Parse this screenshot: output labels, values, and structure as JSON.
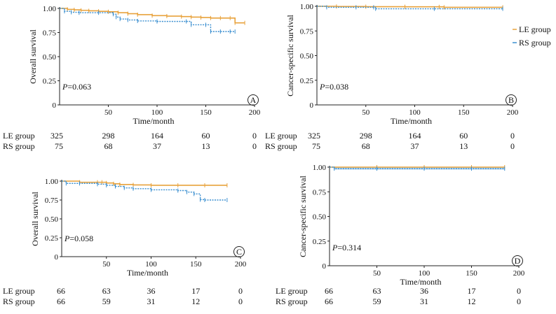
{
  "legend": {
    "items": [
      {
        "label": "LE group",
        "color": "#E8A23C",
        "marker": "-"
      },
      {
        "label": "RS group",
        "color": "#3B8FD0",
        "marker": "-"
      }
    ]
  },
  "chart_data": [
    {
      "type": "line",
      "panel_label": "A",
      "xlabel": "Time/month",
      "ylabel": "Overall survival",
      "xlim": [
        0,
        200
      ],
      "ylim": [
        0,
        1
      ],
      "xticks": [
        "50",
        "100",
        "150",
        "200"
      ],
      "yticks": [
        "0",
        "0.25",
        "0.50",
        "0.75",
        "1.00"
      ],
      "p_value": "=0.063",
      "series": [
        {
          "name": "LE group",
          "color": "#E8A23C",
          "style": "solid",
          "x": [
            0,
            8,
            15,
            22,
            30,
            40,
            50,
            60,
            70,
            80,
            95,
            110,
            125,
            135,
            145,
            155,
            165,
            175,
            180,
            190
          ],
          "y": [
            1.0,
            0.99,
            0.985,
            0.98,
            0.975,
            0.97,
            0.965,
            0.955,
            0.945,
            0.935,
            0.925,
            0.92,
            0.915,
            0.91,
            0.905,
            0.9,
            0.9,
            0.9,
            0.85,
            0.85
          ]
        },
        {
          "name": "RS group",
          "color": "#3B8FD0",
          "style": "dotted",
          "x": [
            0,
            5,
            12,
            20,
            40,
            55,
            58,
            62,
            70,
            80,
            100,
            130,
            135,
            150,
            155,
            165,
            175,
            180
          ],
          "y": [
            1.0,
            0.97,
            0.96,
            0.955,
            0.955,
            0.94,
            0.91,
            0.89,
            0.88,
            0.87,
            0.865,
            0.865,
            0.83,
            0.83,
            0.76,
            0.76,
            0.76,
            0.76
          ]
        }
      ],
      "risk_table": {
        "times": [
          0,
          50,
          100,
          150,
          200
        ],
        "rows": [
          {
            "name": "LE group",
            "values": [
              "325",
              "298",
              "164",
              "60",
              "0"
            ]
          },
          {
            "name": "RS group",
            "values": [
              "75",
              "68",
              "37",
              "13",
              "0"
            ]
          }
        ]
      }
    },
    {
      "type": "line",
      "panel_label": "B",
      "xlabel": "Time/month",
      "ylabel": "Cancer-specific survival",
      "xlim": [
        0,
        200
      ],
      "ylim": [
        0,
        1
      ],
      "xticks": [
        "50",
        "100",
        "150",
        "200"
      ],
      "yticks": [
        "0",
        "0.25",
        "0.50",
        "0.75",
        "1.00"
      ],
      "p_value": "=0.038",
      "series": [
        {
          "name": "LE group",
          "color": "#E8A23C",
          "style": "solid",
          "x": [
            0,
            20,
            50,
            90,
            125,
            130,
            190
          ],
          "y": [
            1.0,
            0.998,
            0.996,
            0.995,
            0.994,
            0.99,
            0.99
          ]
        },
        {
          "name": "RS group",
          "color": "#3B8FD0",
          "style": "dotted",
          "x": [
            0,
            10,
            40,
            58,
            60,
            120,
            190
          ],
          "y": [
            1.0,
            0.99,
            0.99,
            0.99,
            0.975,
            0.975,
            0.975
          ]
        }
      ],
      "risk_table": {
        "times": [
          0,
          50,
          100,
          150,
          200
        ],
        "rows": [
          {
            "name": "LE group",
            "values": [
              "325",
              "298",
              "164",
              "60",
              "0"
            ]
          },
          {
            "name": "RS group",
            "values": [
              "75",
              "68",
              "37",
              "13",
              "0"
            ]
          }
        ]
      }
    },
    {
      "type": "line",
      "panel_label": "C",
      "xlabel": "Time/month",
      "ylabel": "Overall survival",
      "xlim": [
        0,
        200
      ],
      "ylim": [
        0,
        1
      ],
      "xticks": [
        "50",
        "100",
        "150",
        "200"
      ],
      "yticks": [
        "0",
        "0.25",
        "0.50",
        "0.75",
        "1.00"
      ],
      "p_value": "=0.058",
      "series": [
        {
          "name": "LE group",
          "color": "#E8A23C",
          "style": "solid",
          "x": [
            0,
            20,
            40,
            45,
            50,
            58,
            65,
            80,
            100,
            130,
            160,
            185
          ],
          "y": [
            1.0,
            0.985,
            0.985,
            0.985,
            0.975,
            0.965,
            0.955,
            0.95,
            0.945,
            0.945,
            0.945,
            0.945
          ]
        },
        {
          "name": "RS group",
          "color": "#3B8FD0",
          "style": "dotted",
          "x": [
            0,
            5,
            20,
            40,
            50,
            60,
            70,
            80,
            100,
            130,
            140,
            148,
            155,
            160,
            185
          ],
          "y": [
            1.0,
            0.97,
            0.97,
            0.96,
            0.945,
            0.93,
            0.91,
            0.9,
            0.885,
            0.875,
            0.855,
            0.83,
            0.755,
            0.75,
            0.75
          ]
        }
      ],
      "risk_table": {
        "times": [
          0,
          50,
          100,
          150,
          200
        ],
        "rows": [
          {
            "name": "LE group",
            "values": [
              "66",
              "63",
              "36",
              "17",
              "0"
            ]
          },
          {
            "name": "RS group",
            "values": [
              "66",
              "59",
              "31",
              "12",
              "0"
            ]
          }
        ]
      }
    },
    {
      "type": "line",
      "panel_label": "D",
      "xlabel": "Time/month",
      "ylabel": "Cancer-specific survival",
      "xlim": [
        0,
        200
      ],
      "ylim": [
        0,
        1
      ],
      "xticks": [
        "50",
        "100",
        "150",
        "200"
      ],
      "yticks": [
        "0",
        "0.25",
        "0.50",
        "0.75",
        "1.00"
      ],
      "p_value": "=0.314",
      "series": [
        {
          "name": "LE group",
          "color": "#E8A23C",
          "style": "solid",
          "x": [
            0,
            50,
            100,
            150,
            185
          ],
          "y": [
            1.0,
            1.0,
            1.0,
            1.0,
            1.0
          ]
        },
        {
          "name": "RS group",
          "color": "#3B8FD0",
          "style": "dotted",
          "x": [
            0,
            5,
            50,
            100,
            150,
            185
          ],
          "y": [
            1.0,
            0.985,
            0.985,
            0.985,
            0.985,
            0.985
          ]
        }
      ],
      "risk_table": {
        "times": [
          0,
          50,
          100,
          150,
          200
        ],
        "rows": [
          {
            "name": "LE group",
            "values": [
              "66",
              "63",
              "36",
              "17",
              "0"
            ]
          },
          {
            "name": "RS group",
            "values": [
              "66",
              "59",
              "31",
              "12",
              "0"
            ]
          }
        ]
      }
    }
  ]
}
